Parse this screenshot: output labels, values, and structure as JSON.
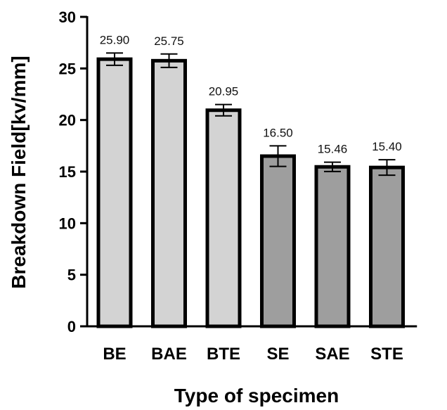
{
  "chart_data": {
    "type": "bar",
    "xlabel": "Type of specimen",
    "ylabel": "Breakdown Field[kv/mm]",
    "ylim": [
      0,
      30
    ],
    "yticks": [
      0,
      5,
      10,
      15,
      20,
      25,
      30
    ],
    "categories": [
      "BE",
      "BAE",
      "BTE",
      "SE",
      "SAE",
      "STE"
    ],
    "values": [
      25.9,
      25.75,
      20.95,
      16.5,
      15.46,
      15.4
    ],
    "value_labels": [
      "25.90",
      "25.75",
      "20.95",
      "16.50",
      "15.46",
      "15.40"
    ],
    "errors": [
      0.6,
      0.65,
      0.55,
      1.0,
      0.45,
      0.75
    ],
    "bar_colors": [
      "#d3d3d3",
      "#d3d3d3",
      "#d3d3d3",
      "#9e9e9e",
      "#9e9e9e",
      "#9e9e9e"
    ],
    "grid": false,
    "legend": "none"
  }
}
